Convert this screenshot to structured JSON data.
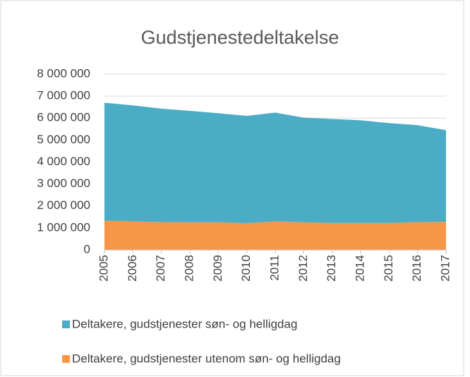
{
  "chart_data": {
    "type": "area",
    "stacked": true,
    "title": "Gudstjenestedeltakelse",
    "categories": [
      "2005",
      "2006",
      "2007",
      "2008",
      "2009",
      "2010",
      "2011",
      "2012",
      "2013",
      "2014",
      "2015",
      "2016",
      "2017"
    ],
    "series": [
      {
        "name": "Deltakere, gudstjenester søn- og helligdag",
        "color": "#4bacc6",
        "values": [
          5370000,
          5280000,
          5160000,
          5070000,
          4960000,
          4880000,
          4950000,
          4760000,
          4730000,
          4670000,
          4540000,
          4410000,
          4170000
        ]
      },
      {
        "name": "Deltakere, gudstjenester utenom søn- og helligdag",
        "color": "#f79646",
        "values": [
          1330000,
          1300000,
          1270000,
          1260000,
          1260000,
          1220000,
          1300000,
          1260000,
          1230000,
          1230000,
          1230000,
          1270000,
          1280000
        ]
      }
    ],
    "ylim": [
      0,
      8000000
    ],
    "yticks": [
      0,
      {
        "value": 1000000,
        "label": "1 000 000"
      },
      {
        "value": 2000000,
        "label": "2 000 000"
      },
      {
        "value": 3000000,
        "label": "3 000 000"
      },
      {
        "value": 4000000,
        "label": "4 000 000"
      },
      {
        "value": 5000000,
        "label": "5 000 000"
      },
      {
        "value": 6000000,
        "label": "6 000 000"
      },
      {
        "value": 7000000,
        "label": "7 000 000"
      },
      {
        "value": 8000000,
        "label": "8 000 000"
      }
    ],
    "grid": true
  }
}
